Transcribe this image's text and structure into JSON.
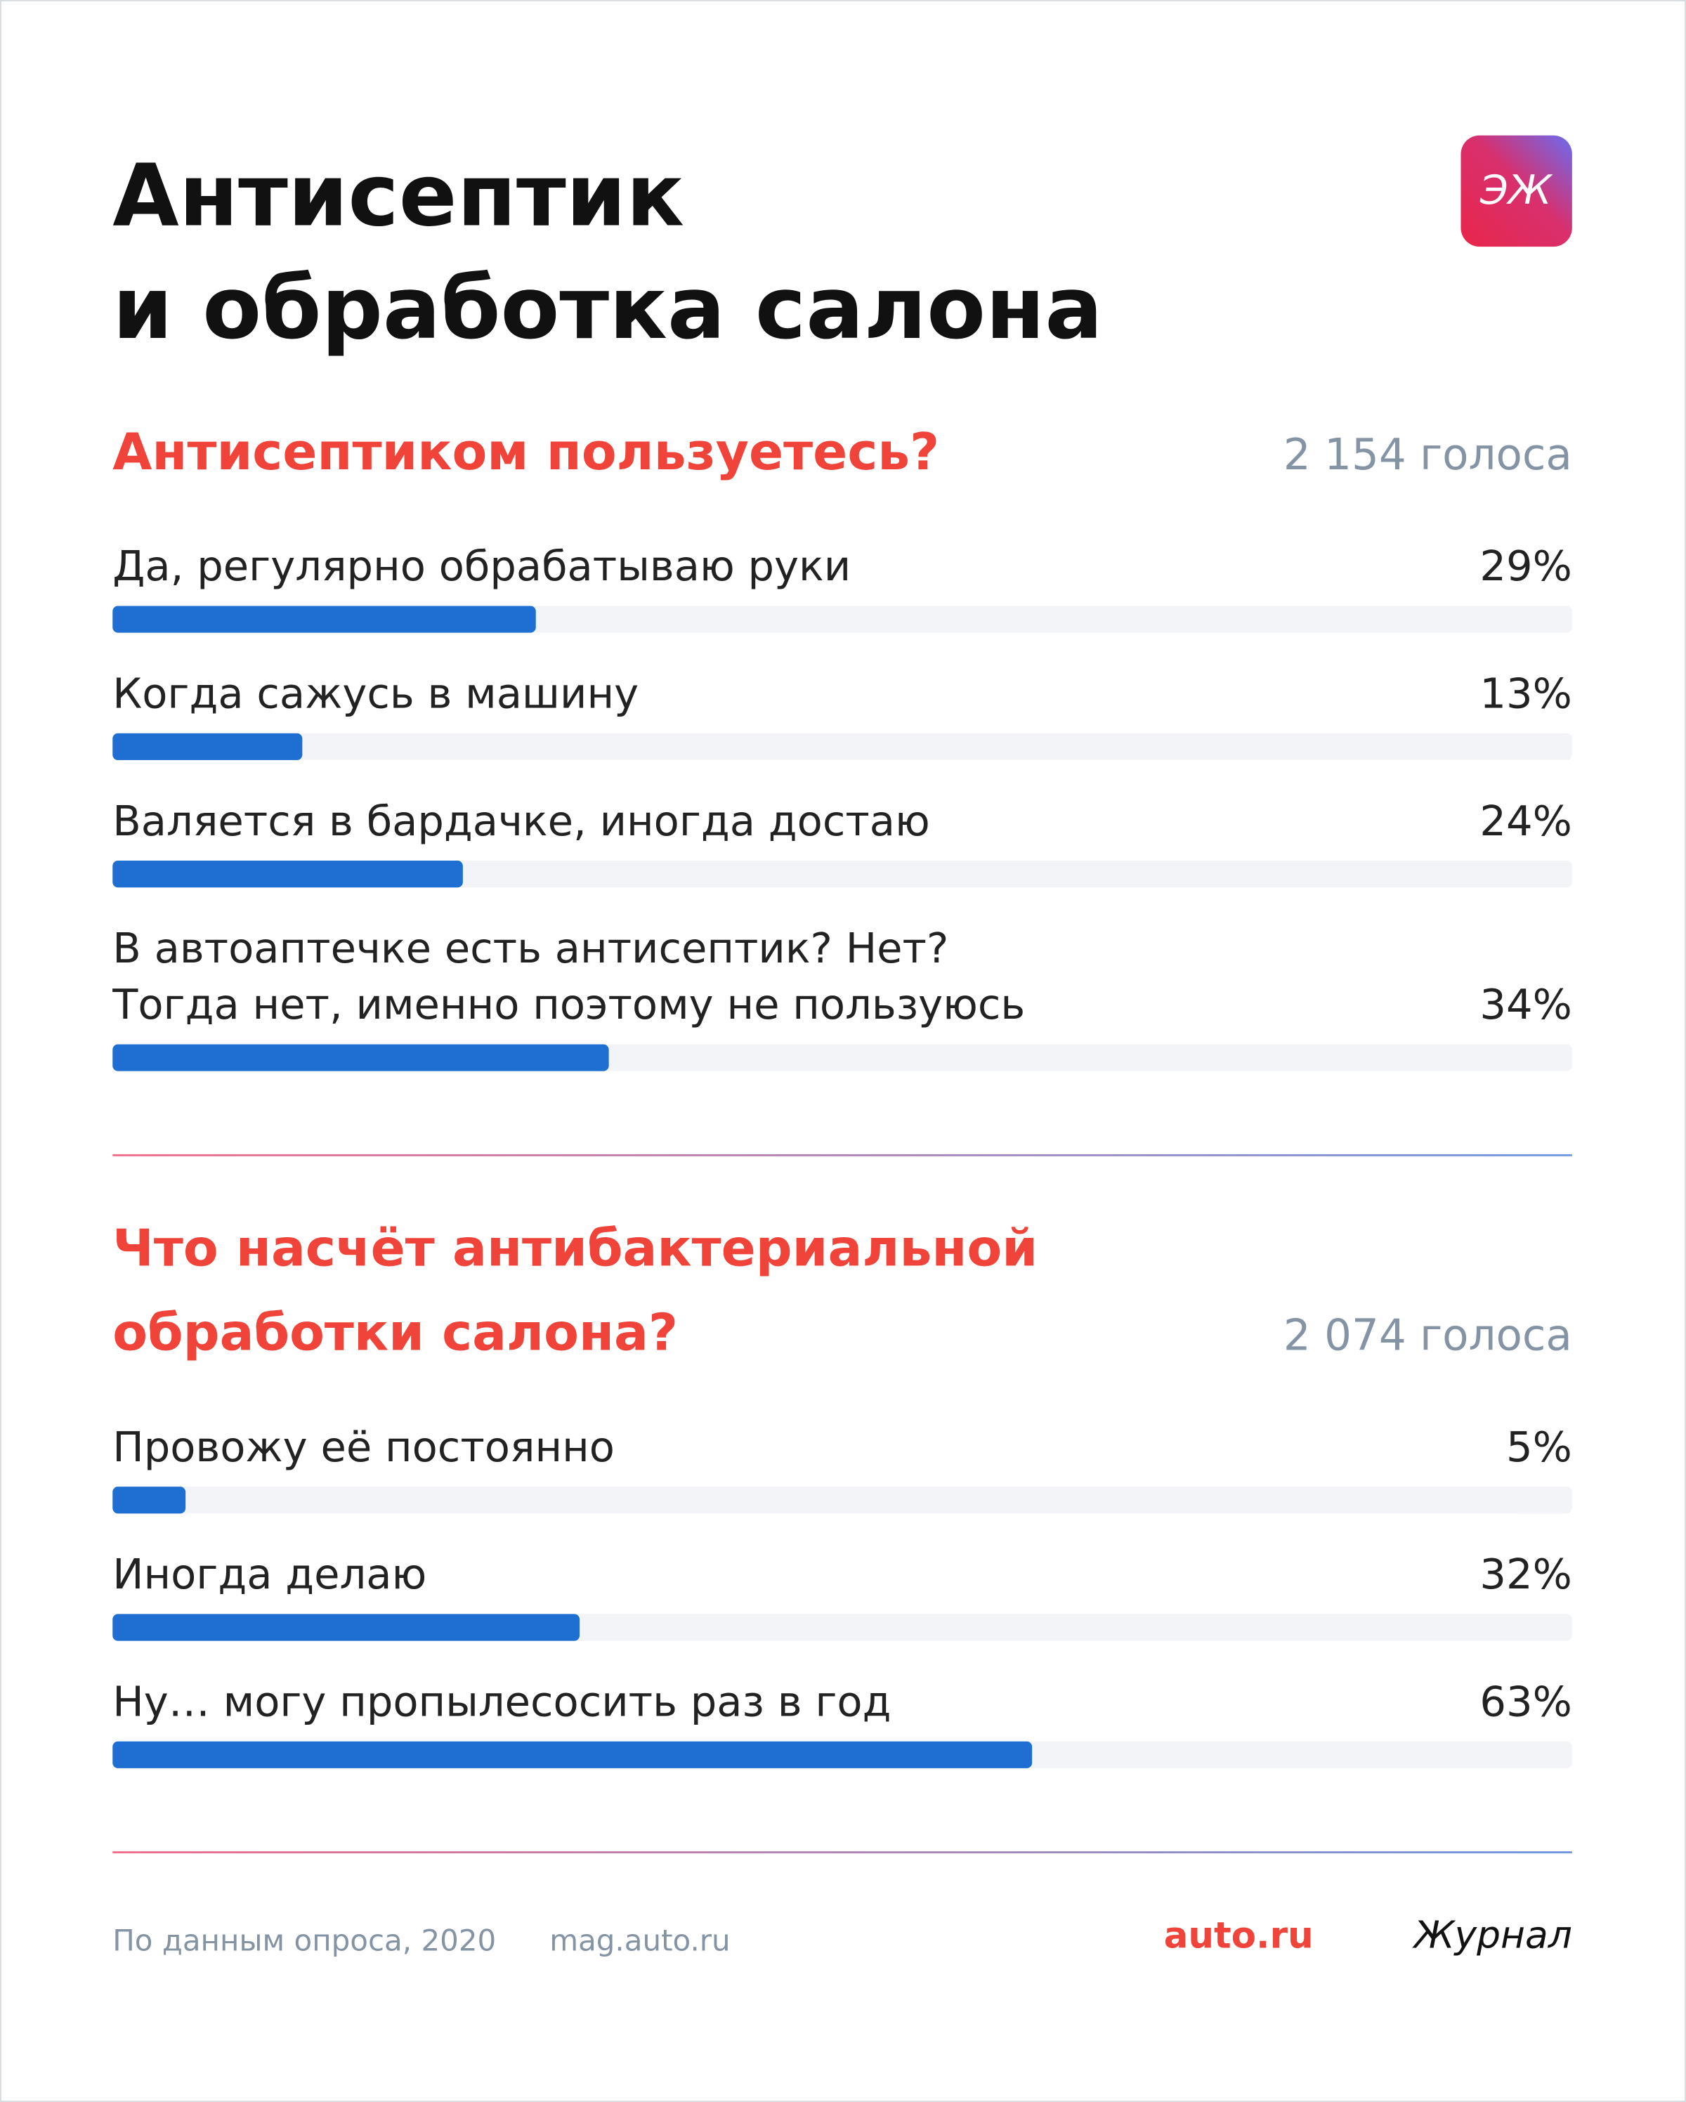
{
  "title": [
    "Антисептик",
    "и обработка салона"
  ],
  "logo": "ЭЖ",
  "chart_data": [
    {
      "type": "bar",
      "title": "Антисептиком пользуетесь?",
      "votes": "2 154 голоса",
      "categories": [
        "Да, регулярно обрабатываю руки",
        "Когда сажусь в машину",
        "Валяется в бардачке, иногда достаю",
        "В автоаптечке есть антисептик? Нет?\nТогда нет, именно поэтому не пользуюсь"
      ],
      "values": [
        29,
        13,
        24,
        34
      ],
      "value_labels": [
        "29%",
        "13%",
        "24%",
        "34%"
      ],
      "color": "#1f6fd3",
      "xlim": [
        0,
        100
      ]
    },
    {
      "type": "bar",
      "title": "Что насчёт антибактериальной\nобработки салона?",
      "votes": "2 074 голоса",
      "categories": [
        "Провожу её постоянно",
        "Иногда делаю",
        "Ну… могу пропылесосить раз в год"
      ],
      "values": [
        5,
        32,
        63
      ],
      "value_labels": [
        "5%",
        "32%",
        "63%"
      ],
      "color": "#1f6fd3",
      "xlim": [
        0,
        100
      ]
    }
  ],
  "footer": {
    "source": "По данным опроса, 2020",
    "site": "mag.auto.ru",
    "brand": "auto.ru",
    "journal": "Журнал"
  }
}
